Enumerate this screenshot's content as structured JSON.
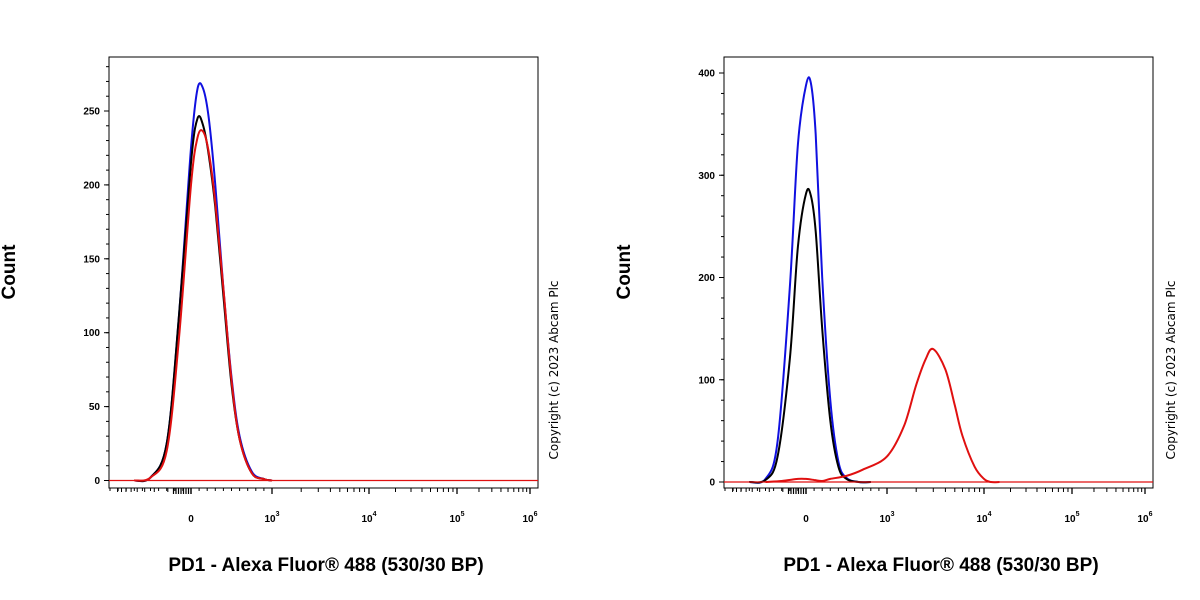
{
  "chart_data": [
    {
      "type": "line",
      "subtype": "flow-cytometry-histogram",
      "xlabel": "PD1 - Alexa Fluor® 488 (530/30 BP)",
      "ylabel": "Count",
      "x_scale": "biexponential",
      "x_ticks": [
        {
          "base": "0",
          "exp": ""
        },
        {
          "base": "10",
          "exp": "3"
        },
        {
          "base": "10",
          "exp": "4"
        },
        {
          "base": "10",
          "exp": "5"
        },
        {
          "base": "10",
          "exp": "6"
        }
      ],
      "x_tick_values": [
        0,
        1000,
        10000,
        100000,
        1000000
      ],
      "ylim": [
        0,
        280
      ],
      "y_ticks": [
        "0",
        "50",
        "100",
        "150",
        "200",
        "250"
      ],
      "y_tick_values": [
        0,
        50,
        100,
        150,
        200,
        250
      ],
      "copyright": "Copyright (c) 2023 Abcam Plc",
      "series": [
        {
          "color": "#1010e0",
          "x": [
            -700,
            -500,
            -300,
            -150,
            0,
            80,
            150,
            220,
            300,
            400,
            500,
            600,
            750,
            900,
            1000
          ],
          "y": [
            0,
            2,
            25,
            110,
            225,
            265,
            265,
            245,
            200,
            130,
            70,
            30,
            6,
            1,
            0
          ]
        },
        {
          "color": "#000000",
          "x": [
            -700,
            -500,
            -300,
            -150,
            0,
            80,
            150,
            220,
            300,
            400,
            500,
            600,
            750,
            900,
            1000
          ],
          "y": [
            0,
            2,
            25,
            110,
            215,
            245,
            240,
            220,
            185,
            125,
            65,
            28,
            5,
            1,
            0
          ]
        },
        {
          "color": "#e01010",
          "x": [
            -700,
            -500,
            -300,
            -150,
            0,
            80,
            150,
            220,
            300,
            400,
            500,
            600,
            750,
            900,
            1000
          ],
          "y": [
            0,
            2,
            20,
            95,
            200,
            232,
            236,
            222,
            188,
            130,
            68,
            28,
            5,
            1,
            0
          ]
        }
      ]
    },
    {
      "type": "line",
      "subtype": "flow-cytometry-histogram",
      "xlabel": "PD1 - Alexa Fluor® 488 (530/30 BP)",
      "ylabel": "Count",
      "x_scale": "biexponential",
      "x_ticks": [
        {
          "base": "0",
          "exp": ""
        },
        {
          "base": "10",
          "exp": "3"
        },
        {
          "base": "10",
          "exp": "4"
        },
        {
          "base": "10",
          "exp": "5"
        },
        {
          "base": "10",
          "exp": "6"
        }
      ],
      "x_tick_values": [
        0,
        1000,
        10000,
        100000,
        1000000
      ],
      "ylim": [
        0,
        400
      ],
      "y_ticks": [
        "0",
        "100",
        "200",
        "300",
        "400"
      ],
      "y_tick_values": [
        0,
        100,
        200,
        300,
        400
      ],
      "copyright": "Copyright (c) 2023 Abcam Plc",
      "series": [
        {
          "color": "#1010e0",
          "x": [
            -700,
            -500,
            -350,
            -200,
            -100,
            0,
            60,
            120,
            200,
            300,
            400,
            500,
            650,
            800
          ],
          "y": [
            0,
            3,
            40,
            190,
            330,
            388,
            390,
            340,
            200,
            80,
            20,
            4,
            0,
            0
          ]
        },
        {
          "color": "#000000",
          "x": [
            -700,
            -500,
            -350,
            -200,
            -100,
            0,
            60,
            120,
            200,
            300,
            400,
            500,
            650,
            800
          ],
          "y": [
            0,
            2,
            25,
            120,
            230,
            282,
            280,
            245,
            150,
            60,
            15,
            3,
            0,
            0
          ]
        },
        {
          "color": "#e01010",
          "x": [
            -500,
            -300,
            -100,
            0,
            100,
            200,
            300,
            500,
            700,
            1000,
            1500,
            2000,
            2500,
            3000,
            4000,
            5000,
            6000,
            8000,
            10000,
            12000,
            15000
          ],
          "y": [
            0,
            1,
            3,
            3,
            2,
            1,
            3,
            6,
            12,
            25,
            55,
            95,
            120,
            130,
            110,
            75,
            45,
            15,
            3,
            0,
            0
          ]
        }
      ]
    }
  ]
}
